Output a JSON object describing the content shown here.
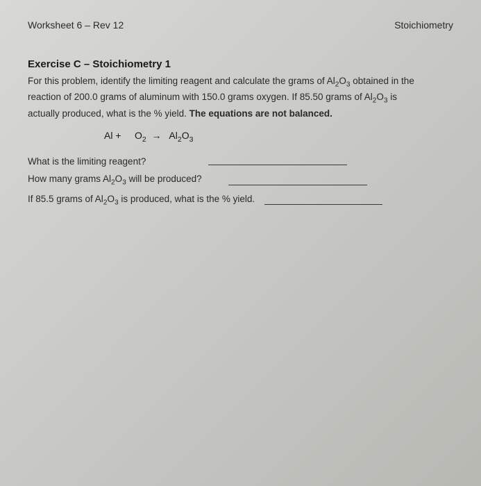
{
  "header": {
    "worksheet": "Worksheet 6 – Rev 12",
    "subject": "Stoichiometry"
  },
  "exercise": {
    "title": "Exercise C – Stoichiometry 1",
    "problem_line1": "For this problem, identify the limiting reagent and calculate the grams of Al",
    "problem_sub1": "2",
    "problem_mid1": "O",
    "problem_sub2": "3",
    "problem_line1_end": " obtained in the",
    "problem_line2": "reaction of 200.0 grams of aluminum with 150.0 grams oxygen. If 85.50 grams of Al",
    "problem_sub3": "2",
    "problem_mid2": "O",
    "problem_sub4": "3",
    "problem_line2_end": " is",
    "problem_line3": "actually produced, what is the % yield. ",
    "problem_bold": "The equations are not balanced.",
    "equation": {
      "reactant1": "Al +",
      "reactant2_base": "O",
      "reactant2_sub": "2",
      "arrow": "→",
      "product_base1": "Al",
      "product_sub1": "2",
      "product_base2": "O",
      "product_sub2": "3"
    }
  },
  "questions": {
    "q1": "What is the limiting reagent?",
    "q2_pre": "How many grams Al",
    "q2_sub1": "2",
    "q2_mid": "O",
    "q2_sub2": "3",
    "q2_post": " will be produced?",
    "q3_pre": "If 85.5 grams of Al",
    "q3_sub1": "2",
    "q3_mid": "O",
    "q3_sub2": "3",
    "q3_post": " is produced, what is the % yield."
  }
}
